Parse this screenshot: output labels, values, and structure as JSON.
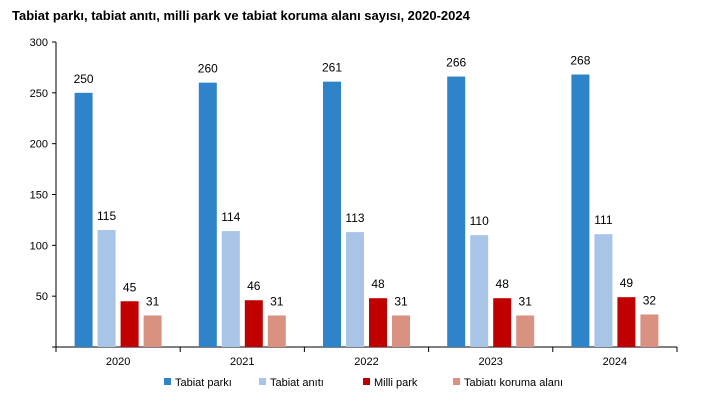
{
  "chart_data": {
    "type": "bar",
    "title": "Tabiat parkı, tabiat anıtı, milli park ve tabiat koruma alanı sayısı, 2020-2024",
    "xlabel": "",
    "ylabel": "",
    "categories": [
      "2020",
      "2021",
      "2022",
      "2023",
      "2024"
    ],
    "ylim": [
      0,
      300
    ],
    "yticks": [
      0,
      50,
      100,
      150,
      200,
      250,
      300
    ],
    "ytick_labels": [
      "",
      "50",
      "100",
      "150",
      "200",
      "250",
      "300"
    ],
    "grid": false,
    "legend_position": "bottom",
    "series": [
      {
        "name": "Tabiat parkı",
        "color": "#2e83c9",
        "values": [
          250,
          260,
          261,
          266,
          268
        ]
      },
      {
        "name": "Tabiat anıtı",
        "color": "#a8c4e6",
        "values": [
          115,
          114,
          113,
          110,
          111
        ]
      },
      {
        "name": "Milli park",
        "color": "#c00000",
        "values": [
          45,
          46,
          48,
          48,
          49
        ]
      },
      {
        "name": "Tabiatı koruma alanı",
        "color": "#d99282",
        "values": [
          31,
          31,
          31,
          31,
          32
        ]
      }
    ]
  }
}
